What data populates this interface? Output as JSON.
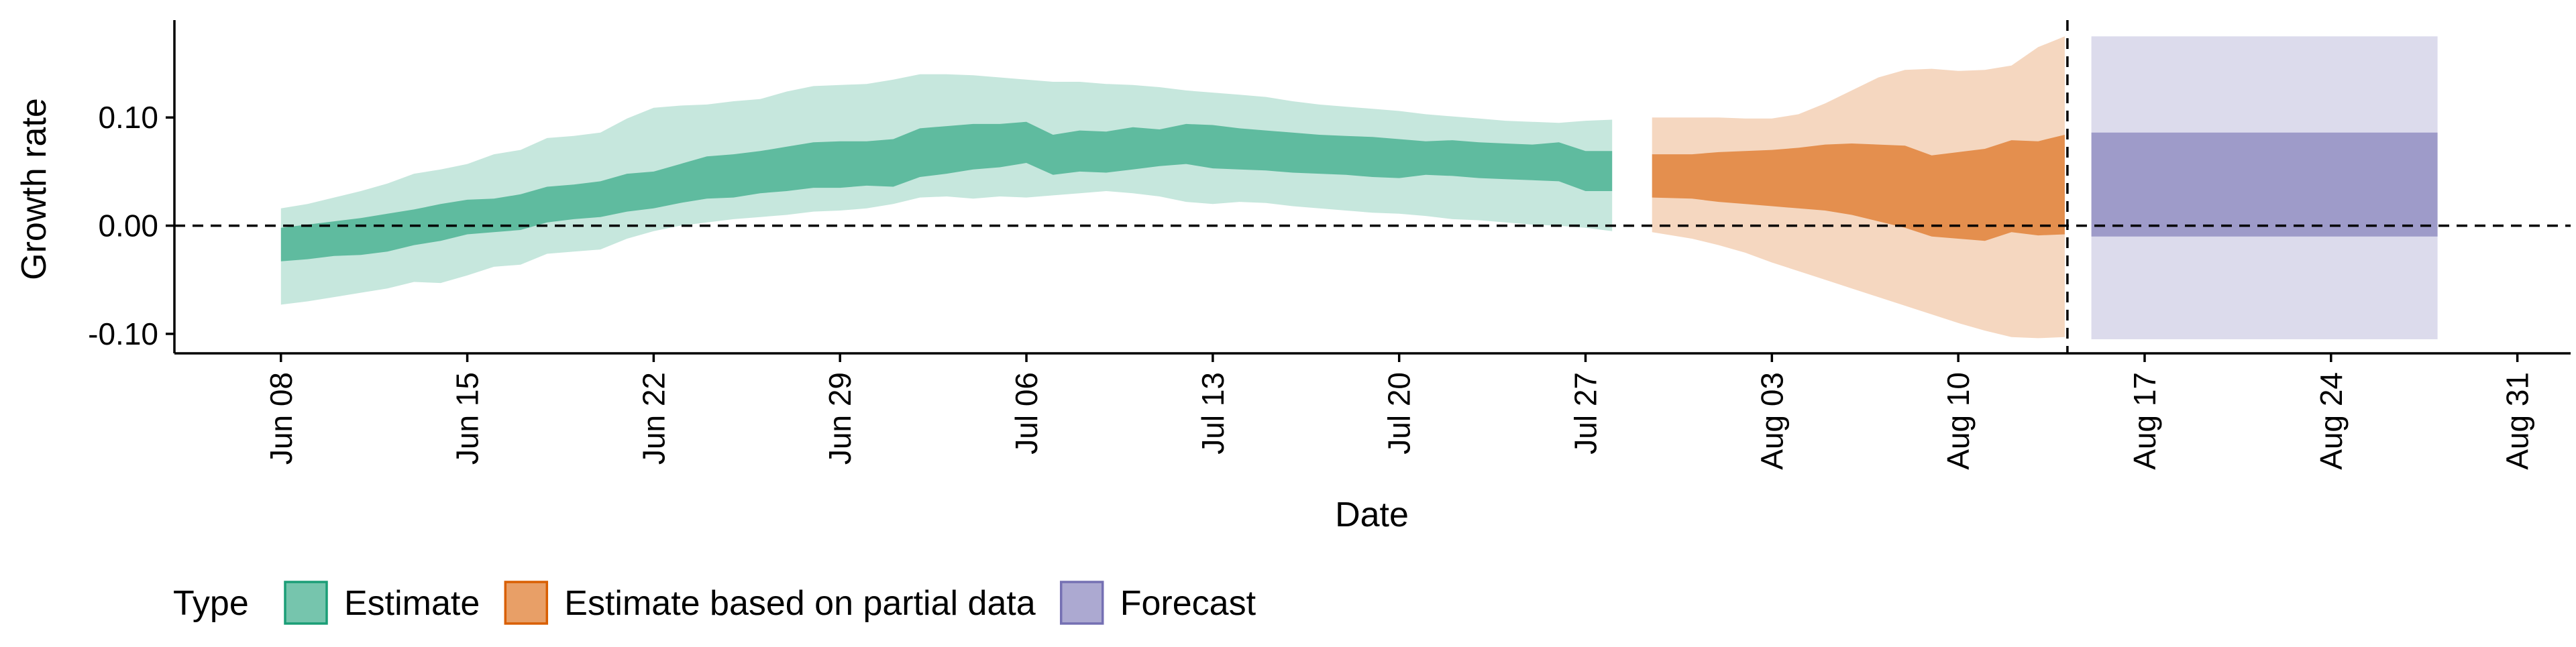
{
  "chart_data": {
    "type": "area",
    "xlabel": "Date",
    "ylabel": "Growth rate",
    "x_ticks": [
      "Jun 08",
      "Jun 15",
      "Jun 22",
      "Jun 29",
      "Jul 06",
      "Jul 13",
      "Jul 20",
      "Jul 27",
      "Aug 03",
      "Aug 10",
      "Aug 17",
      "Aug 24",
      "Aug 31"
    ],
    "x_tick_days": [
      7,
      14,
      21,
      28,
      35,
      42,
      49,
      56,
      63,
      70,
      77,
      84,
      91
    ],
    "xlim": [
      3,
      93
    ],
    "y_ticks": [
      "0.10",
      "0.00",
      "-0.10"
    ],
    "y_tick_values": [
      0.1,
      0.0,
      -0.1
    ],
    "ylim": [
      -0.118,
      0.19
    ],
    "zero_line": 0.0,
    "forecast_date_line_day": 74.1,
    "legend": {
      "title": "Type",
      "position": "bottom-left",
      "entries": [
        "Estimate",
        "Estimate based on partial data",
        "Forecast"
      ]
    },
    "colors": {
      "Estimate": "#1b9e77",
      "Estimate based on partial data": "#d95f02",
      "Forecast": "#7570b3"
    },
    "series": [
      {
        "name": "Estimate",
        "x_days": [
          7,
          8,
          9,
          10,
          11,
          12,
          13,
          14,
          15,
          16,
          17,
          18,
          19,
          20,
          21,
          22,
          23,
          24,
          25,
          26,
          27,
          28,
          29,
          30,
          31,
          32,
          33,
          34,
          35,
          36,
          37,
          38,
          39,
          40,
          41,
          42,
          43,
          44,
          45,
          46,
          47,
          48,
          49,
          50,
          51,
          52,
          53,
          54,
          55,
          56,
          57
        ],
        "outer_lower": [
          -0.073,
          -0.07,
          -0.066,
          -0.062,
          -0.058,
          -0.052,
          -0.053,
          -0.046,
          -0.038,
          -0.036,
          -0.026,
          -0.024,
          -0.022,
          -0.012,
          -0.005,
          0.0,
          0.003,
          0.006,
          0.008,
          0.01,
          0.013,
          0.014,
          0.016,
          0.02,
          0.026,
          0.027,
          0.025,
          0.027,
          0.026,
          0.028,
          0.03,
          0.032,
          0.03,
          0.027,
          0.022,
          0.02,
          0.022,
          0.021,
          0.018,
          0.016,
          0.014,
          0.012,
          0.011,
          0.009,
          0.006,
          0.005,
          0.003,
          0.001,
          0.0,
          -0.002,
          -0.005
        ],
        "inner_lower": [
          -0.033,
          -0.031,
          -0.028,
          -0.027,
          -0.024,
          -0.018,
          -0.014,
          -0.008,
          -0.006,
          -0.004,
          0.003,
          0.006,
          0.008,
          0.013,
          0.016,
          0.021,
          0.025,
          0.026,
          0.03,
          0.032,
          0.035,
          0.035,
          0.037,
          0.036,
          0.045,
          0.048,
          0.052,
          0.054,
          0.058,
          0.047,
          0.05,
          0.049,
          0.052,
          0.055,
          0.057,
          0.053,
          0.052,
          0.051,
          0.049,
          0.048,
          0.047,
          0.045,
          0.044,
          0.047,
          0.046,
          0.044,
          0.043,
          0.042,
          0.041,
          0.032,
          0.032
        ],
        "inner_upper": [
          -0.002,
          0.001,
          0.004,
          0.007,
          0.011,
          0.015,
          0.02,
          0.024,
          0.025,
          0.029,
          0.036,
          0.038,
          0.041,
          0.048,
          0.05,
          0.057,
          0.064,
          0.066,
          0.069,
          0.073,
          0.077,
          0.078,
          0.078,
          0.08,
          0.09,
          0.092,
          0.094,
          0.094,
          0.096,
          0.084,
          0.088,
          0.087,
          0.091,
          0.089,
          0.094,
          0.093,
          0.09,
          0.088,
          0.086,
          0.084,
          0.083,
          0.082,
          0.08,
          0.078,
          0.079,
          0.077,
          0.076,
          0.075,
          0.077,
          0.069,
          0.069
        ],
        "outer_upper": [
          0.016,
          0.02,
          0.026,
          0.032,
          0.039,
          0.048,
          0.052,
          0.057,
          0.066,
          0.07,
          0.081,
          0.083,
          0.086,
          0.099,
          0.109,
          0.111,
          0.112,
          0.115,
          0.117,
          0.124,
          0.129,
          0.13,
          0.131,
          0.135,
          0.14,
          0.14,
          0.139,
          0.137,
          0.135,
          0.133,
          0.133,
          0.131,
          0.13,
          0.128,
          0.125,
          0.123,
          0.121,
          0.119,
          0.115,
          0.112,
          0.11,
          0.108,
          0.106,
          0.103,
          0.101,
          0.099,
          0.097,
          0.096,
          0.095,
          0.097,
          0.098
        ]
      },
      {
        "name": "Estimate based on partial data",
        "x_days": [
          58.5,
          60,
          61,
          62,
          63,
          64,
          65,
          66,
          67,
          68,
          69,
          70,
          71,
          72,
          73,
          74
        ],
        "outer_lower": [
          -0.006,
          -0.012,
          -0.018,
          -0.025,
          -0.034,
          -0.042,
          -0.05,
          -0.058,
          -0.066,
          -0.074,
          -0.082,
          -0.09,
          -0.097,
          -0.103,
          -0.104,
          -0.103
        ],
        "inner_lower": [
          0.026,
          0.025,
          0.022,
          0.02,
          0.018,
          0.016,
          0.014,
          0.01,
          0.004,
          -0.002,
          -0.01,
          -0.012,
          -0.014,
          -0.006,
          -0.009,
          -0.008
        ],
        "inner_upper": [
          0.066,
          0.066,
          0.068,
          0.069,
          0.07,
          0.072,
          0.075,
          0.076,
          0.075,
          0.074,
          0.065,
          0.068,
          0.071,
          0.079,
          0.078,
          0.084
        ],
        "outer_upper": [
          0.1,
          0.1,
          0.1,
          0.099,
          0.099,
          0.103,
          0.113,
          0.125,
          0.137,
          0.144,
          0.145,
          0.143,
          0.144,
          0.148,
          0.165,
          0.175
        ]
      },
      {
        "name": "Forecast",
        "x_days": [
          75,
          88
        ],
        "outer_lower": [
          -0.105,
          -0.105
        ],
        "inner_lower": [
          -0.01,
          -0.01
        ],
        "inner_upper": [
          0.086,
          0.086
        ],
        "outer_upper": [
          0.175,
          0.175
        ]
      }
    ]
  }
}
